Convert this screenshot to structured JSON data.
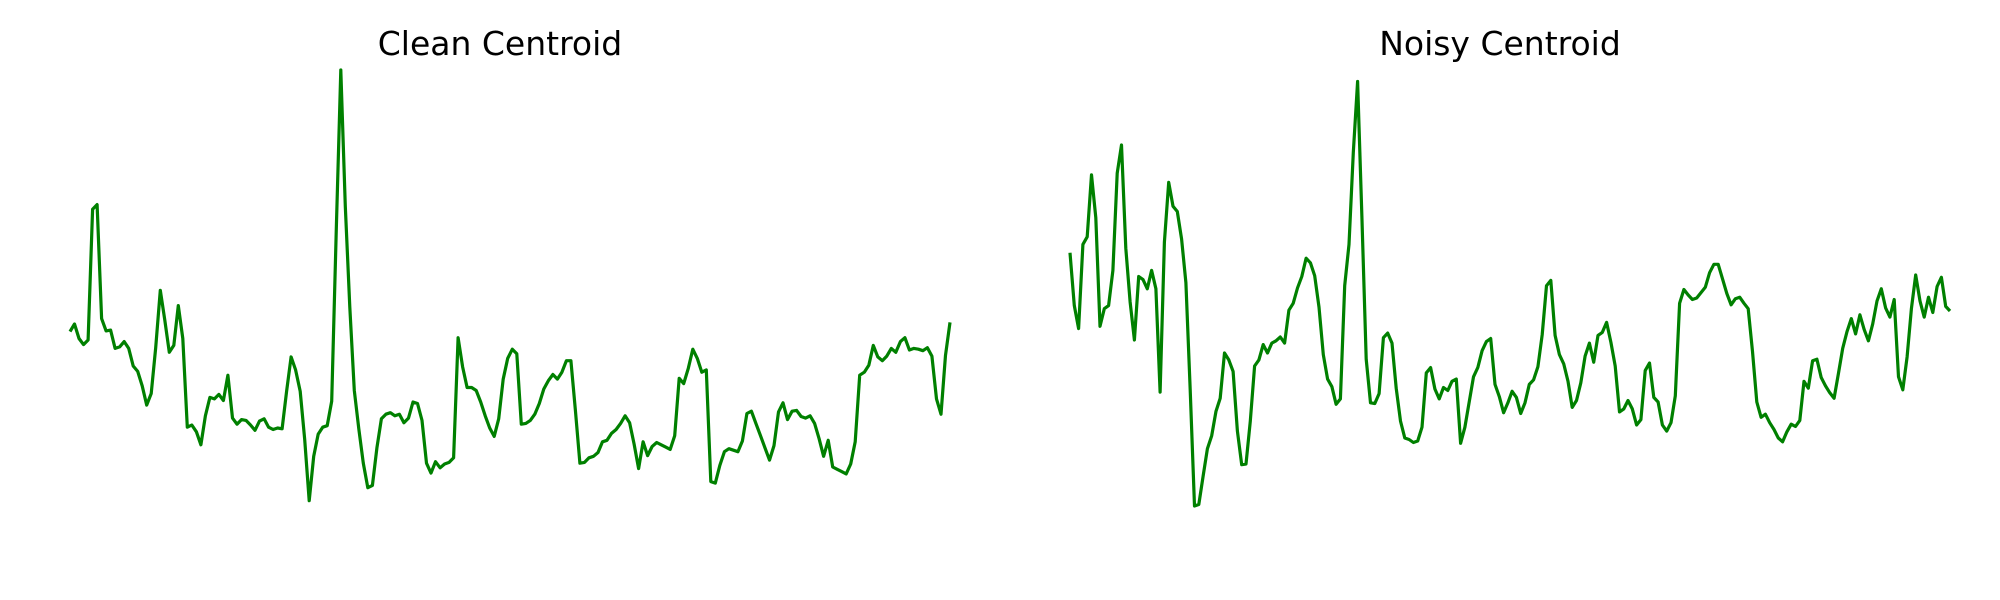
{
  "chart_data": [
    {
      "type": "line",
      "title": "Clean Centroid",
      "color": "#008000",
      "axes_visible": false,
      "grid": false,
      "ylim": [
        -3.0,
        3.0
      ],
      "series": [
        {
          "values": [
            -0.08,
            0.02,
            -0.17,
            -0.25,
            -0.19,
            1.52,
            1.58,
            0.09,
            -0.07,
            -0.06,
            -0.3,
            -0.28,
            -0.21,
            -0.3,
            -0.53,
            -0.6,
            -0.79,
            -1.04,
            -0.89,
            -0.29,
            0.46,
            0.07,
            -0.35,
            -0.26,
            0.26,
            -0.17,
            -1.33,
            -1.3,
            -1.39,
            -1.56,
            -1.18,
            -0.94,
            -0.96,
            -0.9,
            -0.98,
            -0.65,
            -1.21,
            -1.29,
            -1.23,
            -1.24,
            -1.3,
            -1.37,
            -1.25,
            -1.22,
            -1.33,
            -1.36,
            -1.34,
            -1.35,
            -0.86,
            -0.41,
            -0.58,
            -0.86,
            -1.49,
            -2.29,
            -1.71,
            -1.42,
            -1.33,
            -1.31,
            -0.99,
            1.26,
            3.34,
            1.56,
            0.24,
            -0.85,
            -1.35,
            -1.8,
            -2.12,
            -2.09,
            -1.6,
            -1.22,
            -1.16,
            -1.14,
            -1.18,
            -1.16,
            -1.27,
            -1.21,
            -1.0,
            -1.02,
            -1.24,
            -1.8,
            -1.93,
            -1.78,
            -1.86,
            -1.81,
            -1.79,
            -1.73,
            -0.16,
            -0.54,
            -0.81,
            -0.81,
            -0.85,
            -1.0,
            -1.18,
            -1.34,
            -1.45,
            -1.22,
            -0.7,
            -0.43,
            -0.31,
            -0.37,
            -1.29,
            -1.28,
            -1.24,
            -1.16,
            -1.02,
            -0.83,
            -0.72,
            -0.64,
            -0.7,
            -0.61,
            -0.46,
            -0.46,
            -1.11,
            -1.8,
            -1.79,
            -1.73,
            -1.71,
            -1.66,
            -1.52,
            -1.5,
            -1.41,
            -1.36,
            -1.28,
            -1.18,
            -1.27,
            -1.55,
            -1.87,
            -1.52,
            -1.7,
            -1.58,
            -1.53,
            -1.56,
            -1.59,
            -1.62,
            -1.44,
            -0.69,
            -0.76,
            -0.56,
            -0.31,
            -0.43,
            -0.61,
            -0.58,
            -2.04,
            -2.06,
            -1.83,
            -1.65,
            -1.61,
            -1.63,
            -1.65,
            -1.51,
            -1.15,
            -1.12,
            -1.28,
            -1.44,
            -1.6,
            -1.76,
            -1.57,
            -1.13,
            -1.01,
            -1.23,
            -1.12,
            -1.11,
            -1.19,
            -1.21,
            -1.18,
            -1.28,
            -1.48,
            -1.71,
            -1.5,
            -1.85,
            -1.88,
            -1.91,
            -1.94,
            -1.81,
            -1.52,
            -0.65,
            -0.61,
            -0.52,
            -0.26,
            -0.41,
            -0.46,
            -0.4,
            -0.3,
            -0.35,
            -0.21,
            -0.16,
            -0.32,
            -0.3,
            -0.31,
            -0.33,
            -0.29,
            -0.4,
            -0.96,
            -1.16,
            -0.39,
            0.04
          ]
        }
      ]
    },
    {
      "type": "line",
      "title": "Noisy Centroid",
      "color": "#008000",
      "axes_visible": false,
      "grid": false,
      "ylim": [
        -3.0,
        3.0
      ],
      "series": [
        {
          "values": [
            0.95,
            0.26,
            -0.04,
            1.06,
            1.16,
            1.97,
            1.41,
            -0.01,
            0.22,
            0.26,
            0.72,
            1.99,
            2.36,
            1.01,
            0.31,
            -0.19,
            0.64,
            0.6,
            0.48,
            0.72,
            0.48,
            -0.87,
            1.09,
            1.87,
            1.56,
            1.49,
            1.13,
            0.56,
            -0.84,
            -2.36,
            -2.34,
            -1.97,
            -1.61,
            -1.44,
            -1.12,
            -0.95,
            -0.36,
            -0.45,
            -0.6,
            -1.38,
            -1.82,
            -1.81,
            -1.25,
            -0.53,
            -0.45,
            -0.25,
            -0.36,
            -0.23,
            -0.2,
            -0.15,
            -0.23,
            0.2,
            0.29,
            0.49,
            0.64,
            0.88,
            0.82,
            0.65,
            0.24,
            -0.38,
            -0.7,
            -0.8,
            -1.03,
            -0.96,
            0.52,
            1.06,
            2.26,
            3.19,
            1.42,
            -0.44,
            -1.01,
            -1.02,
            -0.89,
            -0.16,
            -0.1,
            -0.23,
            -0.82,
            -1.25,
            -1.47,
            -1.49,
            -1.53,
            -1.51,
            -1.33,
            -0.62,
            -0.55,
            -0.83,
            -0.96,
            -0.81,
            -0.85,
            -0.73,
            -0.7,
            -1.54,
            -1.33,
            -1.0,
            -0.67,
            -0.55,
            -0.33,
            -0.21,
            -0.17,
            -0.77,
            -0.93,
            -1.14,
            -1.01,
            -0.86,
            -0.94,
            -1.15,
            -1.01,
            -0.77,
            -0.71,
            -0.54,
            -0.12,
            0.52,
            0.59,
            -0.13,
            -0.38,
            -0.5,
            -0.73,
            -1.07,
            -0.98,
            -0.75,
            -0.4,
            -0.23,
            -0.48,
            -0.13,
            -0.09,
            0.04,
            -0.22,
            -0.53,
            -1.13,
            -1.09,
            -0.98,
            -1.09,
            -1.3,
            -1.23,
            -0.59,
            -0.49,
            -0.94,
            -1.0,
            -1.3,
            -1.38,
            -1.27,
            -0.92,
            0.29,
            0.47,
            0.4,
            0.34,
            0.36,
            0.43,
            0.5,
            0.69,
            0.8,
            0.8,
            0.61,
            0.42,
            0.27,
            0.35,
            0.37,
            0.29,
            0.22,
            -0.34,
            -1.0,
            -1.2,
            -1.16,
            -1.27,
            -1.36,
            -1.47,
            -1.52,
            -1.39,
            -1.29,
            -1.32,
            -1.24,
            -0.73,
            -0.82,
            -0.46,
            -0.44,
            -0.68,
            -0.79,
            -0.88,
            -0.95,
            -0.63,
            -0.3,
            -0.08,
            0.09,
            -0.11,
            0.14,
            -0.05,
            -0.2,
            0.02,
            0.32,
            0.48,
            0.23,
            0.11,
            0.34,
            -0.67,
            -0.84,
            -0.41,
            0.22,
            0.66,
            0.32,
            0.11,
            0.37,
            0.17,
            0.51,
            0.63,
            0.25,
            0.19
          ]
        }
      ]
    }
  ]
}
